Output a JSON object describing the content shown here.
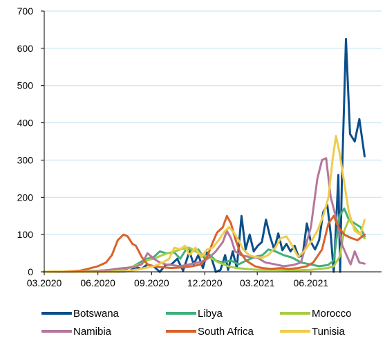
{
  "chart_data": {
    "type": "line",
    "title": "",
    "xlabel": "",
    "ylabel": "",
    "ylim": [
      0,
      700
    ],
    "yticks": [
      0,
      100,
      200,
      300,
      400,
      500,
      600,
      700
    ],
    "xlim": [
      "2020-03-01",
      "2021-09-30"
    ],
    "xtick_labels": [
      {
        "date": "2020-03-01",
        "label": "03.2020"
      },
      {
        "date": "2020-06-01",
        "label": "06.2020"
      },
      {
        "date": "2020-09-01",
        "label": "09.2020"
      },
      {
        "date": "2020-12-01",
        "label": "12.2020"
      },
      {
        "date": "2021-03-01",
        "label": "03.2021"
      },
      {
        "date": "2021-06-01",
        "label": "06.2021"
      }
    ],
    "grid": {
      "horizontal": true,
      "vertical": false
    },
    "legend_position": "bottom",
    "series": [
      {
        "name": "Botswana",
        "color": "#0b4f8a",
        "points": [
          [
            "2020-03-01",
            0
          ],
          [
            "2020-04-01",
            0
          ],
          [
            "2020-05-01",
            0
          ],
          [
            "2020-06-01",
            0
          ],
          [
            "2020-07-01",
            0
          ],
          [
            "2020-07-25",
            2
          ],
          [
            "2020-08-05",
            12
          ],
          [
            "2020-08-15",
            8
          ],
          [
            "2020-08-25",
            20
          ],
          [
            "2020-09-05",
            14
          ],
          [
            "2020-09-15",
            0
          ],
          [
            "2020-09-25",
            18
          ],
          [
            "2020-10-05",
            20
          ],
          [
            "2020-10-15",
            35
          ],
          [
            "2020-10-25",
            3
          ],
          [
            "2020-11-05",
            55
          ],
          [
            "2020-11-12",
            20
          ],
          [
            "2020-11-20",
            45
          ],
          [
            "2020-11-28",
            10
          ],
          [
            "2020-12-05",
            52
          ],
          [
            "2020-12-12",
            40
          ],
          [
            "2020-12-20",
            0
          ],
          [
            "2020-12-28",
            5
          ],
          [
            "2021-01-05",
            45
          ],
          [
            "2021-01-10",
            5
          ],
          [
            "2021-01-18",
            55
          ],
          [
            "2021-01-25",
            10
          ],
          [
            "2021-02-02",
            150
          ],
          [
            "2021-02-09",
            60
          ],
          [
            "2021-02-16",
            100
          ],
          [
            "2021-02-23",
            55
          ],
          [
            "2021-03-02",
            70
          ],
          [
            "2021-03-09",
            80
          ],
          [
            "2021-03-16",
            140
          ],
          [
            "2021-03-23",
            95
          ],
          [
            "2021-03-30",
            60
          ],
          [
            "2021-04-06",
            103
          ],
          [
            "2021-04-13",
            58
          ],
          [
            "2021-04-20",
            75
          ],
          [
            "2021-04-27",
            55
          ],
          [
            "2021-05-04",
            70
          ],
          [
            "2021-05-11",
            40
          ],
          [
            "2021-05-18",
            45
          ],
          [
            "2021-05-25",
            130
          ],
          [
            "2021-06-01",
            80
          ],
          [
            "2021-06-08",
            60
          ],
          [
            "2021-06-15",
            85
          ],
          [
            "2021-06-22",
            160
          ],
          [
            "2021-06-29",
            180
          ],
          [
            "2021-07-05",
            100
          ],
          [
            "2021-07-10",
            0
          ],
          [
            "2021-07-14",
            120
          ],
          [
            "2021-07-18",
            260
          ],
          [
            "2021-07-21",
            0
          ],
          [
            "2021-07-24",
            245
          ],
          [
            "2021-07-31",
            625
          ],
          [
            "2021-08-07",
            370
          ],
          [
            "2021-08-15",
            350
          ],
          [
            "2021-08-23",
            410
          ],
          [
            "2021-09-01",
            310
          ]
        ]
      },
      {
        "name": "Libya",
        "color": "#40b07a",
        "points": [
          [
            "2020-03-01",
            0
          ],
          [
            "2020-04-01",
            0
          ],
          [
            "2020-05-01",
            2
          ],
          [
            "2020-06-01",
            3
          ],
          [
            "2020-07-01",
            5
          ],
          [
            "2020-07-20",
            8
          ],
          [
            "2020-08-01",
            15
          ],
          [
            "2020-08-15",
            28
          ],
          [
            "2020-08-25",
            35
          ],
          [
            "2020-09-05",
            40
          ],
          [
            "2020-09-15",
            55
          ],
          [
            "2020-09-25",
            50
          ],
          [
            "2020-10-10",
            52
          ],
          [
            "2020-10-20",
            35
          ],
          [
            "2020-11-01",
            65
          ],
          [
            "2020-11-10",
            55
          ],
          [
            "2020-11-20",
            60
          ],
          [
            "2020-12-01",
            35
          ],
          [
            "2020-12-10",
            45
          ],
          [
            "2020-12-20",
            30
          ],
          [
            "2021-01-01",
            25
          ],
          [
            "2021-01-15",
            30
          ],
          [
            "2021-01-28",
            20
          ],
          [
            "2021-02-10",
            30
          ],
          [
            "2021-02-25",
            40
          ],
          [
            "2021-03-10",
            45
          ],
          [
            "2021-03-20",
            60
          ],
          [
            "2021-04-01",
            55
          ],
          [
            "2021-04-15",
            45
          ],
          [
            "2021-04-30",
            38
          ],
          [
            "2021-05-15",
            25
          ],
          [
            "2021-05-30",
            20
          ],
          [
            "2021-06-15",
            15
          ],
          [
            "2021-06-30",
            18
          ],
          [
            "2021-07-10",
            30
          ],
          [
            "2021-07-20",
            150
          ],
          [
            "2021-07-28",
            170
          ],
          [
            "2021-08-05",
            140
          ],
          [
            "2021-08-15",
            130
          ],
          [
            "2021-08-25",
            120
          ],
          [
            "2021-09-01",
            95
          ]
        ]
      },
      {
        "name": "Morocco",
        "color": "#a8cc45",
        "points": [
          [
            "2020-03-01",
            0
          ],
          [
            "2020-04-01",
            1
          ],
          [
            "2020-05-01",
            2
          ],
          [
            "2020-06-01",
            2
          ],
          [
            "2020-07-01",
            5
          ],
          [
            "2020-07-20",
            10
          ],
          [
            "2020-08-01",
            15
          ],
          [
            "2020-08-15",
            22
          ],
          [
            "2020-08-25",
            32
          ],
          [
            "2020-09-05",
            35
          ],
          [
            "2020-09-15",
            42
          ],
          [
            "2020-09-25",
            48
          ],
          [
            "2020-10-10",
            55
          ],
          [
            "2020-10-25",
            62
          ],
          [
            "2020-11-05",
            65
          ],
          [
            "2020-11-15",
            55
          ],
          [
            "2020-11-28",
            45
          ],
          [
            "2020-12-10",
            38
          ],
          [
            "2020-12-25",
            25
          ],
          [
            "2021-01-10",
            15
          ],
          [
            "2021-01-25",
            10
          ],
          [
            "2021-02-10",
            8
          ],
          [
            "2021-02-25",
            6
          ],
          [
            "2021-03-15",
            5
          ],
          [
            "2021-04-01",
            5
          ],
          [
            "2021-04-20",
            4
          ],
          [
            "2021-05-10",
            4
          ],
          [
            "2021-05-30",
            5
          ],
          [
            "2021-06-15",
            8
          ],
          [
            "2021-06-30",
            10
          ],
          [
            "2021-07-10",
            15
          ],
          [
            "2021-07-20",
            40
          ],
          [
            "2021-07-28",
            110
          ],
          [
            "2021-08-05",
            140
          ],
          [
            "2021-08-15",
            120
          ],
          [
            "2021-08-25",
            100
          ],
          [
            "2021-09-01",
            90
          ]
        ]
      },
      {
        "name": "Namibia",
        "color": "#b5779b",
        "points": [
          [
            "2020-03-01",
            0
          ],
          [
            "2020-04-01",
            0
          ],
          [
            "2020-05-01",
            0
          ],
          [
            "2020-06-01",
            2
          ],
          [
            "2020-06-20",
            5
          ],
          [
            "2020-07-01",
            8
          ],
          [
            "2020-07-15",
            10
          ],
          [
            "2020-08-01",
            12
          ],
          [
            "2020-08-15",
            20
          ],
          [
            "2020-08-25",
            50
          ],
          [
            "2020-09-05",
            35
          ],
          [
            "2020-09-15",
            25
          ],
          [
            "2020-09-25",
            20
          ],
          [
            "2020-10-05",
            18
          ],
          [
            "2020-10-20",
            15
          ],
          [
            "2020-11-05",
            20
          ],
          [
            "2020-11-20",
            25
          ],
          [
            "2020-12-01",
            30
          ],
          [
            "2020-12-10",
            40
          ],
          [
            "2020-12-20",
            55
          ],
          [
            "2021-01-01",
            80
          ],
          [
            "2021-01-08",
            110
          ],
          [
            "2021-01-15",
            90
          ],
          [
            "2021-01-22",
            55
          ],
          [
            "2021-02-01",
            45
          ],
          [
            "2021-02-15",
            40
          ],
          [
            "2021-03-01",
            38
          ],
          [
            "2021-03-15",
            25
          ],
          [
            "2021-04-01",
            20
          ],
          [
            "2021-04-15",
            15
          ],
          [
            "2021-05-01",
            18
          ],
          [
            "2021-05-15",
            25
          ],
          [
            "2021-06-01",
            120
          ],
          [
            "2021-06-12",
            250
          ],
          [
            "2021-06-20",
            300
          ],
          [
            "2021-06-27",
            305
          ],
          [
            "2021-07-05",
            200
          ],
          [
            "2021-07-15",
            140
          ],
          [
            "2021-07-25",
            70
          ],
          [
            "2021-08-01",
            45
          ],
          [
            "2021-08-08",
            20
          ],
          [
            "2021-08-15",
            55
          ],
          [
            "2021-08-23",
            25
          ],
          [
            "2021-09-01",
            22
          ]
        ]
      },
      {
        "name": "South Africa",
        "color": "#d9632c",
        "points": [
          [
            "2020-03-01",
            0
          ],
          [
            "2020-04-01",
            1
          ],
          [
            "2020-04-20",
            2
          ],
          [
            "2020-05-01",
            3
          ],
          [
            "2020-05-15",
            8
          ],
          [
            "2020-06-01",
            15
          ],
          [
            "2020-06-15",
            25
          ],
          [
            "2020-06-25",
            45
          ],
          [
            "2020-07-05",
            85
          ],
          [
            "2020-07-15",
            100
          ],
          [
            "2020-07-22",
            95
          ],
          [
            "2020-07-30",
            75
          ],
          [
            "2020-08-05",
            70
          ],
          [
            "2020-08-15",
            40
          ],
          [
            "2020-08-25",
            20
          ],
          [
            "2020-09-05",
            15
          ],
          [
            "2020-09-20",
            12
          ],
          [
            "2020-10-05",
            10
          ],
          [
            "2020-10-25",
            12
          ],
          [
            "2020-11-10",
            15
          ],
          [
            "2020-11-25",
            20
          ],
          [
            "2020-12-05",
            40
          ],
          [
            "2020-12-15",
            80
          ],
          [
            "2020-12-22",
            105
          ],
          [
            "2021-01-01",
            120
          ],
          [
            "2021-01-08",
            150
          ],
          [
            "2021-01-15",
            130
          ],
          [
            "2021-01-22",
            90
          ],
          [
            "2021-01-30",
            55
          ],
          [
            "2021-02-10",
            30
          ],
          [
            "2021-02-25",
            15
          ],
          [
            "2021-03-10",
            10
          ],
          [
            "2021-03-25",
            8
          ],
          [
            "2021-04-10",
            10
          ],
          [
            "2021-04-25",
            8
          ],
          [
            "2021-05-10",
            10
          ],
          [
            "2021-05-25",
            15
          ],
          [
            "2021-06-05",
            25
          ],
          [
            "2021-06-20",
            60
          ],
          [
            "2021-07-01",
            130
          ],
          [
            "2021-07-10",
            150
          ],
          [
            "2021-07-18",
            120
          ],
          [
            "2021-07-28",
            100
          ],
          [
            "2021-08-10",
            90
          ],
          [
            "2021-08-20",
            85
          ],
          [
            "2021-09-01",
            100
          ]
        ]
      },
      {
        "name": "Tunisia",
        "color": "#f0cc4c",
        "points": [
          [
            "2020-03-01",
            0
          ],
          [
            "2020-04-01",
            1
          ],
          [
            "2020-05-01",
            0
          ],
          [
            "2020-06-01",
            0
          ],
          [
            "2020-07-01",
            0
          ],
          [
            "2020-07-20",
            2
          ],
          [
            "2020-08-05",
            5
          ],
          [
            "2020-08-20",
            10
          ],
          [
            "2020-09-05",
            15
          ],
          [
            "2020-09-20",
            25
          ],
          [
            "2020-10-01",
            35
          ],
          [
            "2020-10-10",
            65
          ],
          [
            "2020-10-20",
            60
          ],
          [
            "2020-10-28",
            70
          ],
          [
            "2020-11-05",
            45
          ],
          [
            "2020-11-15",
            65
          ],
          [
            "2020-11-25",
            40
          ],
          [
            "2020-12-05",
            60
          ],
          [
            "2020-12-15",
            65
          ],
          [
            "2020-12-25",
            85
          ],
          [
            "2021-01-05",
            110
          ],
          [
            "2021-01-12",
            120
          ],
          [
            "2021-01-20",
            105
          ],
          [
            "2021-01-28",
            85
          ],
          [
            "2021-02-05",
            60
          ],
          [
            "2021-02-15",
            45
          ],
          [
            "2021-02-25",
            40
          ],
          [
            "2021-03-10",
            38
          ],
          [
            "2021-03-20",
            45
          ],
          [
            "2021-04-01",
            65
          ],
          [
            "2021-04-10",
            90
          ],
          [
            "2021-04-20",
            95
          ],
          [
            "2021-04-30",
            70
          ],
          [
            "2021-05-10",
            40
          ],
          [
            "2021-05-20",
            55
          ],
          [
            "2021-06-01",
            80
          ],
          [
            "2021-06-12",
            110
          ],
          [
            "2021-06-22",
            150
          ],
          [
            "2021-07-01",
            200
          ],
          [
            "2021-07-08",
            300
          ],
          [
            "2021-07-14",
            365
          ],
          [
            "2021-07-20",
            320
          ],
          [
            "2021-07-27",
            250
          ],
          [
            "2021-08-05",
            160
          ],
          [
            "2021-08-15",
            110
          ],
          [
            "2021-08-25",
            100
          ],
          [
            "2021-09-01",
            140
          ]
        ]
      }
    ]
  }
}
